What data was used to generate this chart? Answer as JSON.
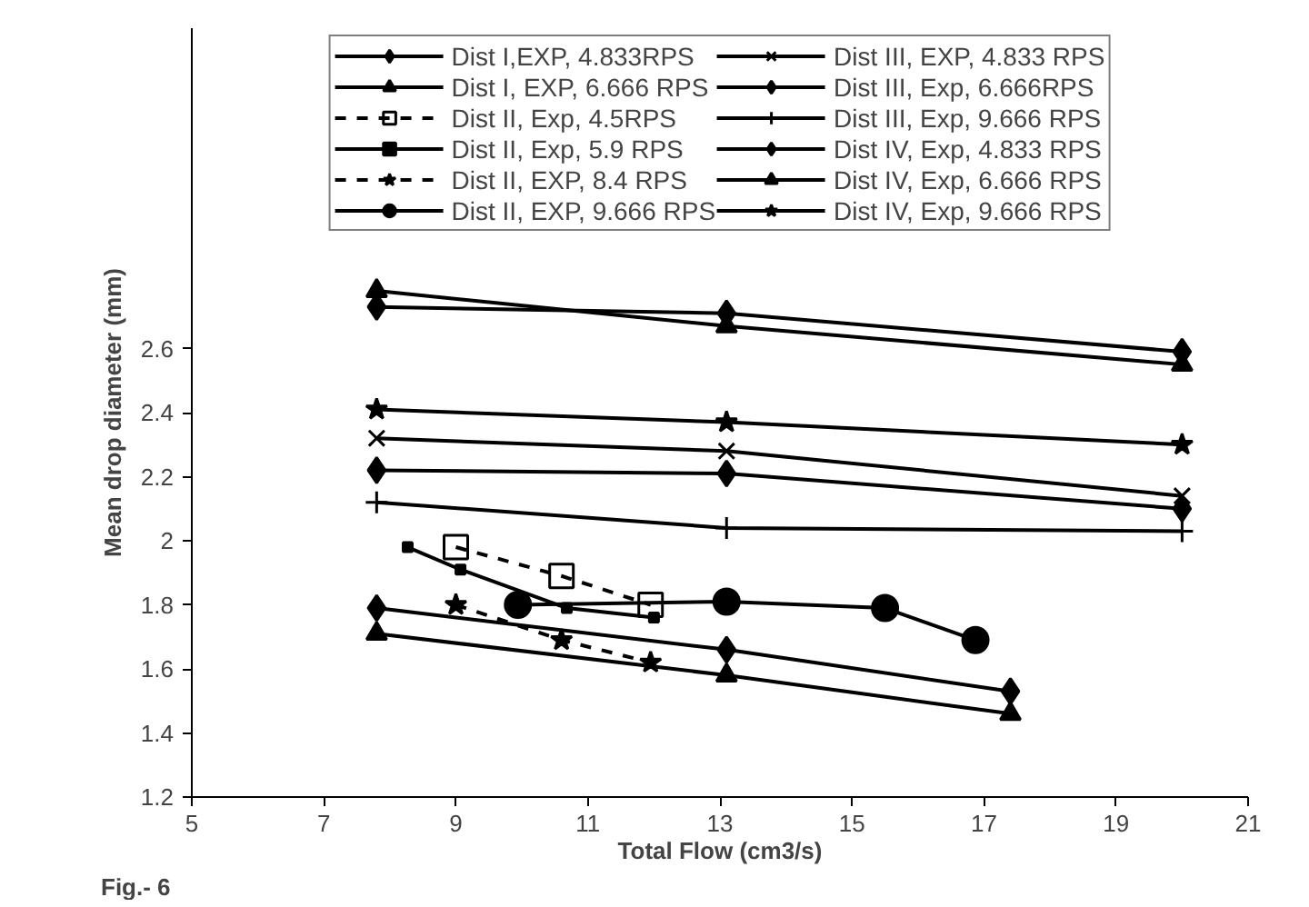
{
  "chart_data": {
    "type": "line",
    "xlabel": "Total Flow (cm3/s)",
    "ylabel": "Mean drop diameter (mm)",
    "xlim": [
      5,
      21
    ],
    "xticks": [
      5,
      7,
      9,
      11,
      13,
      15,
      17,
      19,
      21
    ],
    "ylim": [
      1.2,
      3.6
    ],
    "yticks": [
      1.2,
      1.4,
      1.6,
      1.8,
      2,
      2.2,
      2.4,
      2.6
    ],
    "legend": "top",
    "annotations": [
      "Fig.- 6"
    ],
    "series": [
      {
        "name": "Dist I,EXP, 4.833RPS",
        "color": "#000000",
        "marker": "diamond",
        "line_style": "solid",
        "x": [
          7.8,
          13.1,
          17.4
        ],
        "values": [
          1.79,
          1.66,
          1.53
        ]
      },
      {
        "name": "Dist I, EXP, 6.666 RPS",
        "color": "#000000",
        "marker": "triangle",
        "line_style": "solid",
        "x": [
          7.8,
          13.1,
          17.4
        ],
        "values": [
          1.71,
          1.58,
          1.46
        ]
      },
      {
        "name": "Dist II, Exp, 4.5RPS",
        "color": "#000000",
        "marker": "square",
        "line_style": "dashed",
        "x": [
          9.0,
          10.6,
          11.95
        ],
        "values": [
          1.98,
          1.89,
          1.8
        ]
      },
      {
        "name": "Dist II, Exp, 5.9 RPS",
        "color": "#000000",
        "marker": "square",
        "line_style": "solid",
        "x": [
          8.27,
          9.07,
          10.68,
          12.0
        ],
        "values": [
          1.98,
          1.91,
          1.79,
          1.76
        ]
      },
      {
        "name": "Dist II, EXP, 8.4 RPS",
        "color": "#000000",
        "marker": "star",
        "line_style": "dashed",
        "x": [
          9.0,
          10.6,
          11.95
        ],
        "values": [
          1.8,
          1.69,
          1.62
        ]
      },
      {
        "name": "Dist II, EXP, 9.666 RPS",
        "color": "#000000",
        "marker": "circle",
        "line_style": "solid",
        "x": [
          9.94,
          13.1,
          15.5,
          16.87
        ],
        "values": [
          1.8,
          1.81,
          1.79,
          1.69
        ]
      },
      {
        "name": "Dist III, EXP, 4.833 RPS",
        "color": "#000000",
        "marker": "x",
        "line_style": "solid",
        "x": [
          7.8,
          13.1,
          20.0
        ],
        "values": [
          2.32,
          2.28,
          2.14
        ]
      },
      {
        "name": "Dist III, Exp, 6.666RPS",
        "color": "#000000",
        "marker": "diamond",
        "line_style": "solid",
        "x": [
          7.8,
          13.1,
          20.0
        ],
        "values": [
          2.22,
          2.21,
          2.1
        ]
      },
      {
        "name": "Dist III, Exp, 9.666 RPS",
        "color": "#000000",
        "marker": "cross",
        "line_style": "solid",
        "x": [
          7.8,
          13.1,
          20.0
        ],
        "values": [
          2.12,
          2.04,
          2.03
        ]
      },
      {
        "name": "Dist IV, Exp, 4.833 RPS",
        "color": "#000000",
        "marker": "diamond",
        "line_style": "solid",
        "x": [
          7.8,
          13.1,
          20.0
        ],
        "values": [
          2.73,
          2.71,
          2.59
        ]
      },
      {
        "name": "Dist IV, Exp, 6.666 RPS",
        "color": "#000000",
        "marker": "triangle",
        "line_style": "solid",
        "x": [
          7.8,
          13.1,
          20.0
        ],
        "values": [
          2.78,
          2.67,
          2.55
        ]
      },
      {
        "name": "Dist IV, Exp, 9.666 RPS",
        "color": "#000000",
        "marker": "star",
        "line_style": "solid",
        "x": [
          7.8,
          13.1,
          20.0
        ],
        "values": [
          2.41,
          2.37,
          2.3
        ]
      }
    ]
  }
}
